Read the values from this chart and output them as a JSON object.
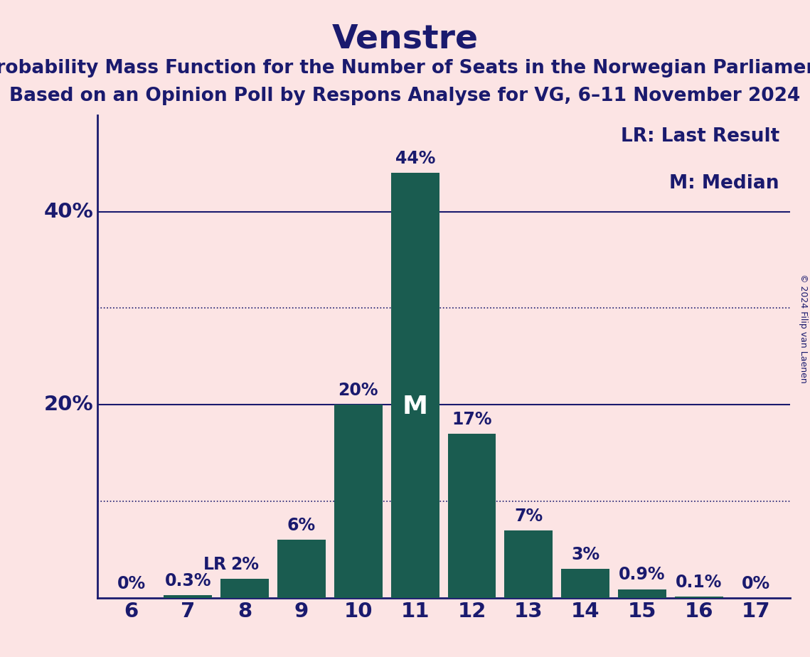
{
  "title": "Venstre",
  "subtitle1": "Probability Mass Function for the Number of Seats in the Norwegian Parliament",
  "subtitle2": "Based on an Opinion Poll by Respons Analyse for VG, 6–11 November 2024",
  "copyright": "© 2024 Filip van Laenen",
  "categories": [
    6,
    7,
    8,
    9,
    10,
    11,
    12,
    13,
    14,
    15,
    16,
    17
  ],
  "values": [
    0.0,
    0.3,
    2.0,
    6.0,
    20.0,
    44.0,
    17.0,
    7.0,
    3.0,
    0.9,
    0.1,
    0.0
  ],
  "labels": [
    "0%",
    "0.3%",
    "2%",
    "6%",
    "20%",
    "44%",
    "17%",
    "7%",
    "3%",
    "0.9%",
    "0.1%",
    "0%"
  ],
  "bar_color": "#1a5c50",
  "background_color": "#fce4e4",
  "text_color": "#1a1a6e",
  "solid_gridlines": [
    20.0,
    40.0
  ],
  "dotted_gridlines": [
    10.0,
    30.0
  ],
  "ylim": [
    0,
    50
  ],
  "median_seat": 11,
  "lr_seat": 8,
  "legend_lr": "LR: Last Result",
  "legend_m": "M: Median",
  "title_fontsize": 34,
  "subtitle_fontsize": 19,
  "label_fontsize": 17,
  "axis_fontsize": 21,
  "legend_fontsize": 19,
  "ylabel_fontsize": 21
}
